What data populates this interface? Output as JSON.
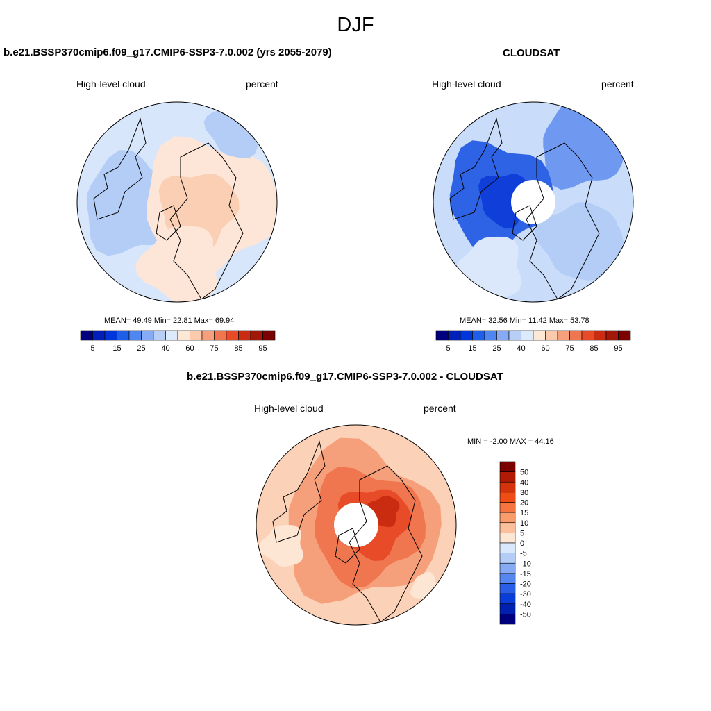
{
  "figure_title": "DJF",
  "panels": [
    {
      "title": "b.e21.BSSP370cmip6.f09_g17.CMIP6-SSP3-7.0.002 (yrs 2055-2079)",
      "left_label": "High-level cloud",
      "right_label": "percent",
      "stats": "MEAN=  49.49  Min=  22.81  Max=  69.94",
      "mean": 49.49,
      "min": 22.81,
      "max": 69.94
    },
    {
      "title": "CLOUDSAT",
      "left_label": "High-level cloud",
      "right_label": "percent",
      "stats": "MEAN=  32.56  Min=  11.42  Max=  53.78",
      "mean": 32.56,
      "min": 11.42,
      "max": 53.78
    },
    {
      "title": "b.e21.BSSP370cmip6.f09_g17.CMIP6-SSP3-7.0.002 - CLOUDSAT",
      "left_label": "High-level cloud",
      "right_label": "percent",
      "stats": "MIN =  -2.00 MAX =  44.16",
      "min": -2.0,
      "max": 44.16
    }
  ],
  "horizontal_colorbar": {
    "colors": [
      "#00007f",
      "#0020b8",
      "#0035d9",
      "#1f5fe8",
      "#4f86f0",
      "#86aaf4",
      "#b7cff7",
      "#ddeafb",
      "#fde8d6",
      "#fbc9ab",
      "#f6a07b",
      "#f0764f",
      "#e84b27",
      "#c92c10",
      "#a11808",
      "#7b0000"
    ],
    "tick_labels": [
      "5",
      "15",
      "25",
      "40",
      "60",
      "75",
      "85",
      "95"
    ]
  },
  "vertical_colorbar": {
    "colors_top_to_bottom": [
      "#7b0000",
      "#b11a05",
      "#d4330c",
      "#f04c16",
      "#f6743f",
      "#fa9b6c",
      "#fcbf9c",
      "#fde6d4",
      "#d9e8fb",
      "#b3cdf7",
      "#86aaf4",
      "#5686f0",
      "#2a5ee8",
      "#0a3cd9",
      "#0020b0",
      "#00007f"
    ],
    "tick_labels": [
      "50",
      "40",
      "30",
      "20",
      "15",
      "10",
      "5",
      "0",
      "-5",
      "-10",
      "-15",
      "-20",
      "-30",
      "-40",
      "-50"
    ]
  },
  "legend_colors": {
    "land_outline": "#000000",
    "missing_data": "#ffffff"
  }
}
